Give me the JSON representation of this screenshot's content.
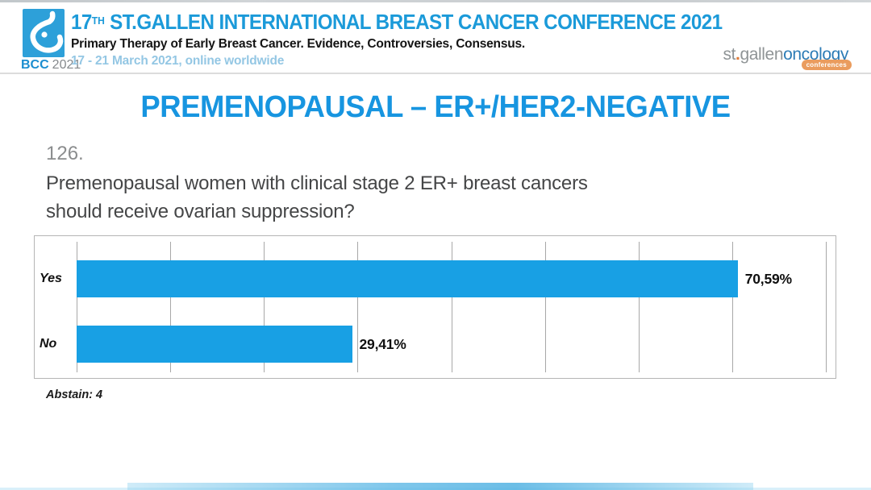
{
  "header": {
    "logo": {
      "bcc": "BCC",
      "year": "2021"
    },
    "title_num": "17",
    "title_sup": "TH",
    "title_rest": " ST.GALLEN INTERNATIONAL BREAST CANCER CONFERENCE 2021",
    "subtitle": "Primary Therapy of Early Breast Cancer. Evidence, Controversies, Consensus.",
    "dates": "17 - 21 March 2021, online worldwide",
    "org_logo": {
      "st": "st",
      "dot": ".",
      "gallen": "gallen",
      "oncology": "oncology",
      "badge": "conferences"
    }
  },
  "slide": {
    "title": "PREMENOPAUSAL – ER+/HER2-NEGATIVE",
    "question_number": "126.",
    "question_line1": "Premenopausal women with clinical stage 2 ER+ breast cancers",
    "question_line2": "should receive ovarian suppression?",
    "abstain": "Abstain: 4"
  },
  "chart_data": {
    "type": "bar",
    "orientation": "horizontal",
    "categories": [
      "Yes",
      "No"
    ],
    "values": [
      70.59,
      29.41
    ],
    "value_labels": [
      "70,59%",
      "29,41%"
    ],
    "xlim": [
      0,
      80
    ],
    "gridline_step": 10,
    "grid": true,
    "legend": false,
    "title": "",
    "xlabel": "",
    "ylabel": "",
    "bar_color": "#18a0e4",
    "note": "Abstain: 4"
  },
  "colors": {
    "accent_blue": "#1795e0",
    "header_blue": "#1b9ad9",
    "bar_blue": "#18a0e4",
    "date_blue": "#94c7e4",
    "logo_square_blue": "#2da0d9",
    "org_orange": "#ea9c5e",
    "org_text_gray": "#8f9496",
    "org_oncology_blue": "#2d7cb6"
  }
}
